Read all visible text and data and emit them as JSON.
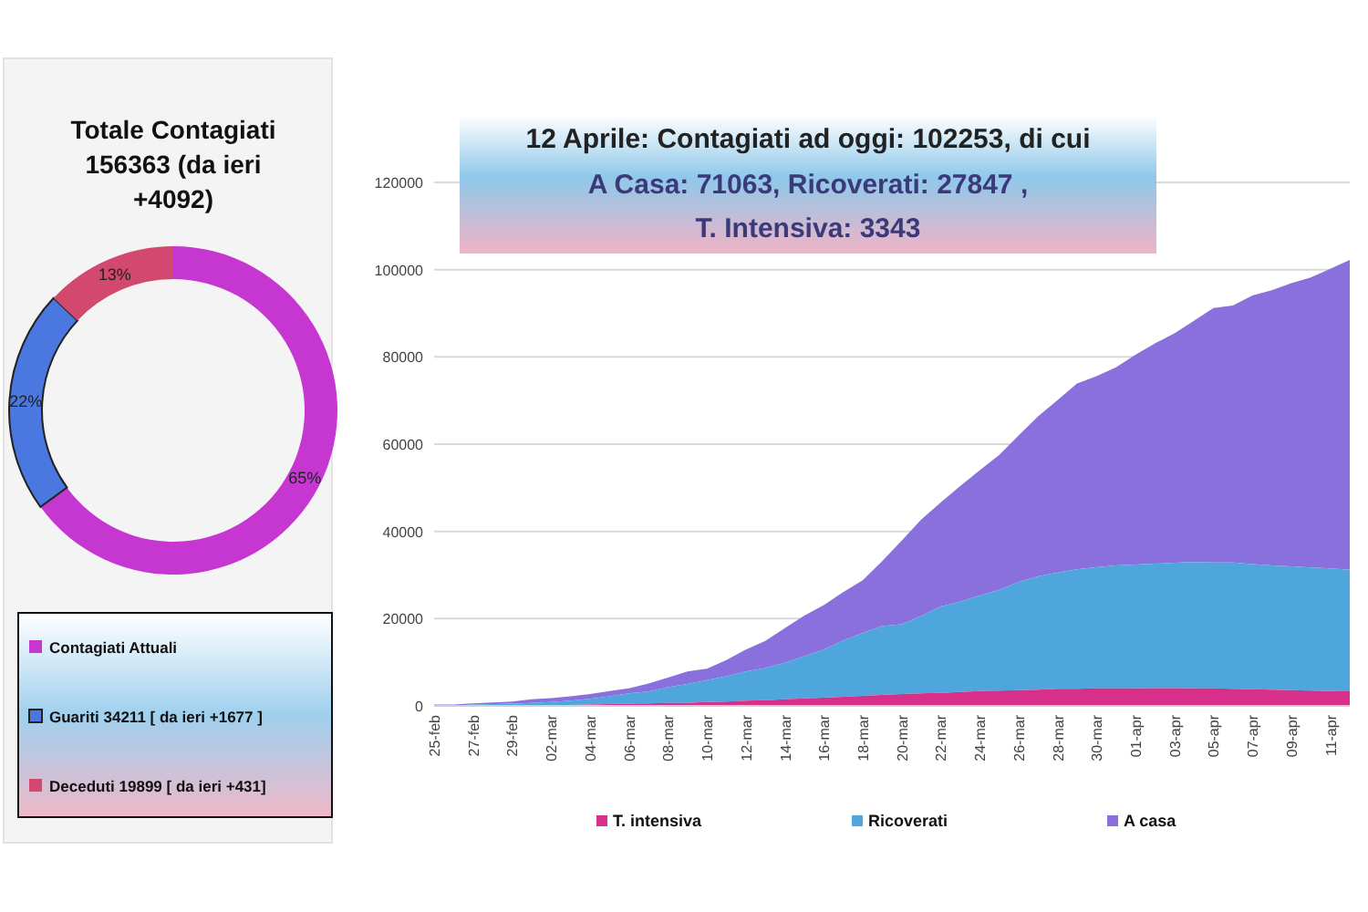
{
  "chart_data": [
    {
      "type": "donut",
      "title": "Totale Contagiati 156363 (da ieri +4092)",
      "categories": [
        "Contagiati Attuali",
        "Guariti 34211 [ da ieri +1677 ]",
        "Deceduti 19899 [ da ieri +431]"
      ],
      "values": [
        65,
        22,
        13
      ],
      "colors": [
        "#c637d2",
        "#4a78e0",
        "#d2486e"
      ],
      "value_labels": [
        "65%",
        "22%",
        "13%"
      ],
      "legend": "bottom"
    },
    {
      "type": "area",
      "title": "12 Aprile: Contagiati ad oggi: 102253, di cui",
      "subtitle": "A Casa: 71063, Ricoverati: 27847 , T. Intensiva: 3343",
      "stacked": true,
      "categories": [
        "25-feb",
        null,
        "27-feb",
        null,
        "29-feb",
        null,
        "02-mar",
        null,
        "04-mar",
        null,
        "06-mar",
        null,
        "08-mar",
        null,
        "10-mar",
        null,
        "12-mar",
        null,
        "14-mar",
        null,
        "16-mar",
        null,
        "18-mar",
        null,
        "20-mar",
        null,
        "22-mar",
        null,
        "24-mar",
        null,
        "26-mar",
        null,
        "28-mar",
        null,
        "30-mar",
        null,
        "01-apr",
        null,
        "03-apr",
        null,
        "05-apr",
        null,
        "07-apr",
        null,
        "09-apr",
        null,
        "11-apr",
        null
      ],
      "ylim": [
        0,
        120000
      ],
      "yticks": [
        0,
        20000,
        40000,
        60000,
        80000,
        100000,
        120000
      ],
      "grid": "y",
      "legend": "bottom",
      "series": [
        {
          "name": "T. intensiva",
          "color": "#d8308a",
          "values": [
            0,
            0,
            100,
            100,
            100,
            100,
            200,
            200,
            300,
            400,
            500,
            600,
            700,
            700,
            900,
            1000,
            1200,
            1300,
            1500,
            1700,
            1900,
            2100,
            2300,
            2500,
            2700,
            2900,
            3000,
            3200,
            3400,
            3500,
            3600,
            3700,
            3900,
            3900,
            4000,
            4000,
            4000,
            4100,
            4100,
            4000,
            4000,
            3900,
            3800,
            3700,
            3600,
            3500,
            3400,
            3343
          ]
        },
        {
          "name": "Ricoverati",
          "color": "#4ea6dc",
          "values": [
            100,
            100,
            200,
            300,
            400,
            600,
            700,
            1000,
            1300,
            1800,
            2400,
            2700,
            3600,
            4300,
            5000,
            5800,
            6700,
            7400,
            8400,
            9700,
            11000,
            12900,
            14400,
            15800,
            16000,
            17700,
            19800,
            20700,
            21900,
            23100,
            24800,
            26000,
            26700,
            27400,
            27800,
            28200,
            28400,
            28500,
            28700,
            29000,
            28900,
            29000,
            28700,
            28500,
            28400,
            28200,
            28100,
            27847
          ]
        },
        {
          "name": "A casa",
          "color": "#8a70dd",
          "values": [
            200,
            200,
            300,
            400,
            500,
            800,
            900,
            1000,
            1100,
            1200,
            1100,
            1800,
            2200,
            2900,
            2600,
            3700,
            5000,
            6200,
            7900,
            9300,
            10200,
            11100,
            12100,
            14900,
            19200,
            22100,
            23800,
            26500,
            28700,
            30900,
            33600,
            36700,
            39500,
            42600,
            43800,
            45400,
            48100,
            50500,
            52600,
            55300,
            58300,
            58900,
            61600,
            63100,
            64900,
            66500,
            68700,
            71063
          ]
        }
      ]
    }
  ]
}
